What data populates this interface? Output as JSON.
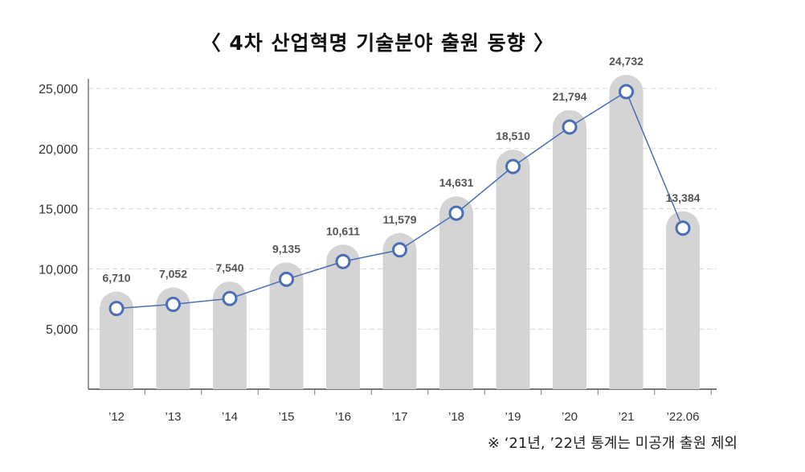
{
  "chart_data": {
    "type": "bar",
    "title": "〈 4차 산업혁명 기술분야 출원 동향 〉",
    "categories": [
      "’12",
      "’13",
      "’14",
      "’15",
      "’16",
      "’17",
      "’18",
      "’19",
      "’20",
      "’21",
      "’22.06"
    ],
    "values": [
      6710,
      7052,
      7540,
      9135,
      10611,
      11579,
      14631,
      18510,
      21794,
      24732,
      13384
    ],
    "value_labels": [
      "6,710",
      "7,052",
      "7,540",
      "9,135",
      "10,611",
      "11,579",
      "14,631",
      "18,510",
      "21,794",
      "24,732",
      "13,384"
    ],
    "line_overlay": true,
    "y_ticks": [
      5000,
      10000,
      15000,
      20000,
      25000
    ],
    "y_tick_labels": [
      "5,000",
      "10,000",
      "15,000",
      "20,000",
      "25,000"
    ],
    "ylim": [
      0,
      25000
    ],
    "grid": true,
    "xlabel": "",
    "ylabel": "",
    "footnote": "※ ‘21년, ’22년 통계는 미공개 출원 제외"
  },
  "colors": {
    "bar": "#d4d4d4",
    "line": "#4a6fb5",
    "marker_stroke": "#4a6fb5",
    "marker_fill": "#ffffff",
    "grid": "#d8d8d8",
    "axis": "#777777"
  }
}
